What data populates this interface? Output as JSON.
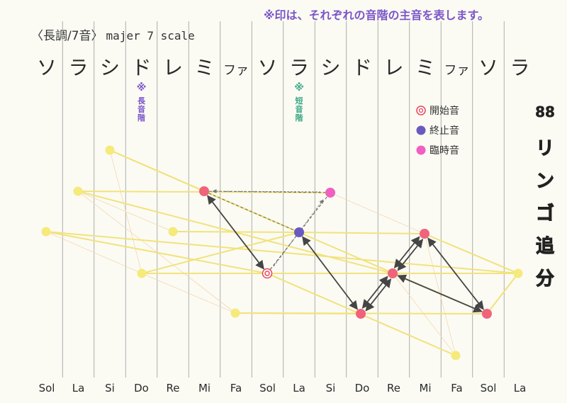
{
  "header": {
    "note": "※印は、それぞれの音階の主音を表します。",
    "title_jp": "〈長調/7音〉",
    "title_en": "majer 7 scale"
  },
  "top_notes": [
    "ソ",
    "ラ",
    "シ",
    "ド",
    "レ",
    "ミ",
    "ファ",
    "ソ",
    "ラ",
    "シ",
    "ド",
    "レ",
    "ミ",
    "ファ",
    "ソ",
    "ラ"
  ],
  "bottom_notes": [
    "Sol",
    "La",
    "Si",
    "Do",
    "Re",
    "Mi",
    "Fa",
    "Sol",
    "La",
    "Si",
    "Do",
    "Re",
    "Mi",
    "Fa",
    "Sol",
    "La"
  ],
  "tonic_markers": [
    {
      "column": 3,
      "mark": "※",
      "label": "長音階",
      "color": "#7b55c8"
    },
    {
      "column": 8,
      "mark": "※",
      "label": "短音階",
      "color": "#3aa886"
    }
  ],
  "legend": [
    {
      "key": "start",
      "label": "開始音",
      "color": "#e8445a"
    },
    {
      "key": "end",
      "label": "終止音",
      "color": "#6a5ac0"
    },
    {
      "key": "accidental",
      "label": "臨時音",
      "color": "#f060c0"
    }
  ],
  "side_title": [
    "88",
    "リ",
    "ン",
    "ゴ",
    "追",
    "分"
  ],
  "colors": {
    "yellow_node": "#f5ea7a",
    "yellow_line": "#f2e27a",
    "played_node": "#f0637a",
    "arrow": "#454545"
  }
}
